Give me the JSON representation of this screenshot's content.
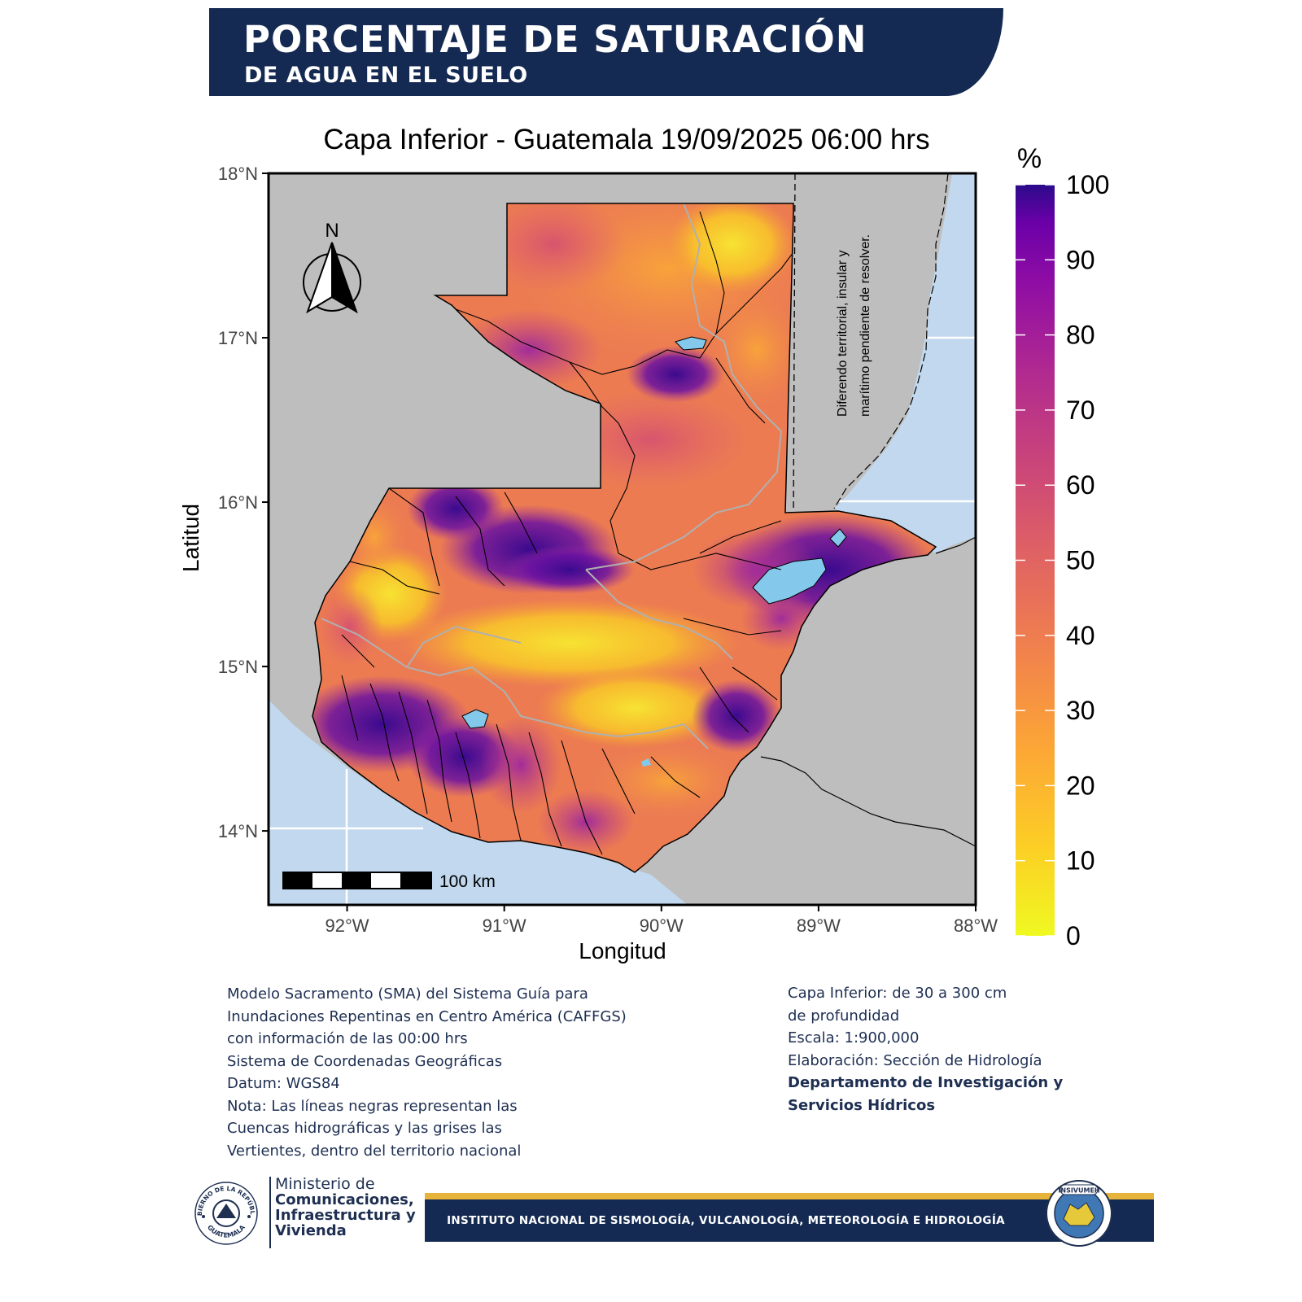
{
  "header": {
    "title_line1": "PORCENTAJE DE SATURACIÓN",
    "title_line2": "DE AGUA EN EL SUELO"
  },
  "map": {
    "title": "Capa Inferior - Guatemala 19/09/2025 06:00 hrs",
    "xlabel": "Longitud",
    "ylabel": "Latitud",
    "x_ticks": [
      "92°W",
      "91°W",
      "90°W",
      "89°W",
      "88°W"
    ],
    "y_ticks": [
      "18°N",
      "17°N",
      "16°N",
      "15°N",
      "14°N"
    ],
    "x_range": [
      -92.5,
      -88.0
    ],
    "y_range": [
      13.55,
      18.0
    ],
    "north_label": "N",
    "scale_bar_label": "100 km",
    "dispute_note_line1": "Diferendo territorial, insular y",
    "dispute_note_line2": "marítimo pendiente de resolver.",
    "colors": {
      "land_other": "#bebebe",
      "water": "#c1d8ee",
      "lakes": "#84c8ec",
      "frame": "#000000"
    }
  },
  "legend": {
    "title": "%",
    "ticks": [
      "100",
      "90",
      "80",
      "70",
      "60",
      "50",
      "40",
      "30",
      "20",
      "10",
      "0"
    ],
    "range": [
      0,
      100
    ],
    "colormap": "plasma-like (0 = yellow, 100 = dark indigo)"
  },
  "notes_left": [
    "Modelo Sacramento (SMA) del Sistema Guía para",
    "Inundaciones Repentinas en Centro América (CAFFGS)",
    "con información de las 00:00 hrs",
    "Sistema de Coordenadas Geográficas",
    "Datum: WGS84",
    "Nota: Las líneas negras representan las",
    "Cuencas hidrográficas y las grises las",
    "Vertientes, dentro del territorio nacional"
  ],
  "notes_right": [
    "Capa Inferior: de 30 a 300 cm",
    "de profundidad",
    "Escala: 1:900,000",
    "Elaboración: Sección de Hidrología"
  ],
  "notes_right_bold": [
    "Departamento de Investigación y",
    "Servicios Hídricos"
  ],
  "footer": {
    "ministry_line1": "Ministerio de",
    "ministry_line2": "Comunicaciones,",
    "ministry_line3": "Infraestructura y",
    "ministry_line4": "Vivienda",
    "institute": "INSTITUTO NACIONAL DE SISMOLOGÍA, VULCANOLOGÍA, METEOROLOGÍA E HIDROLOGÍA",
    "seal_text_top": "GOBIERNO DE LA REPÚBLICA",
    "seal_text_bottom": "GUATEMALA",
    "insivumeh_logo": "INSIVUMEH"
  }
}
